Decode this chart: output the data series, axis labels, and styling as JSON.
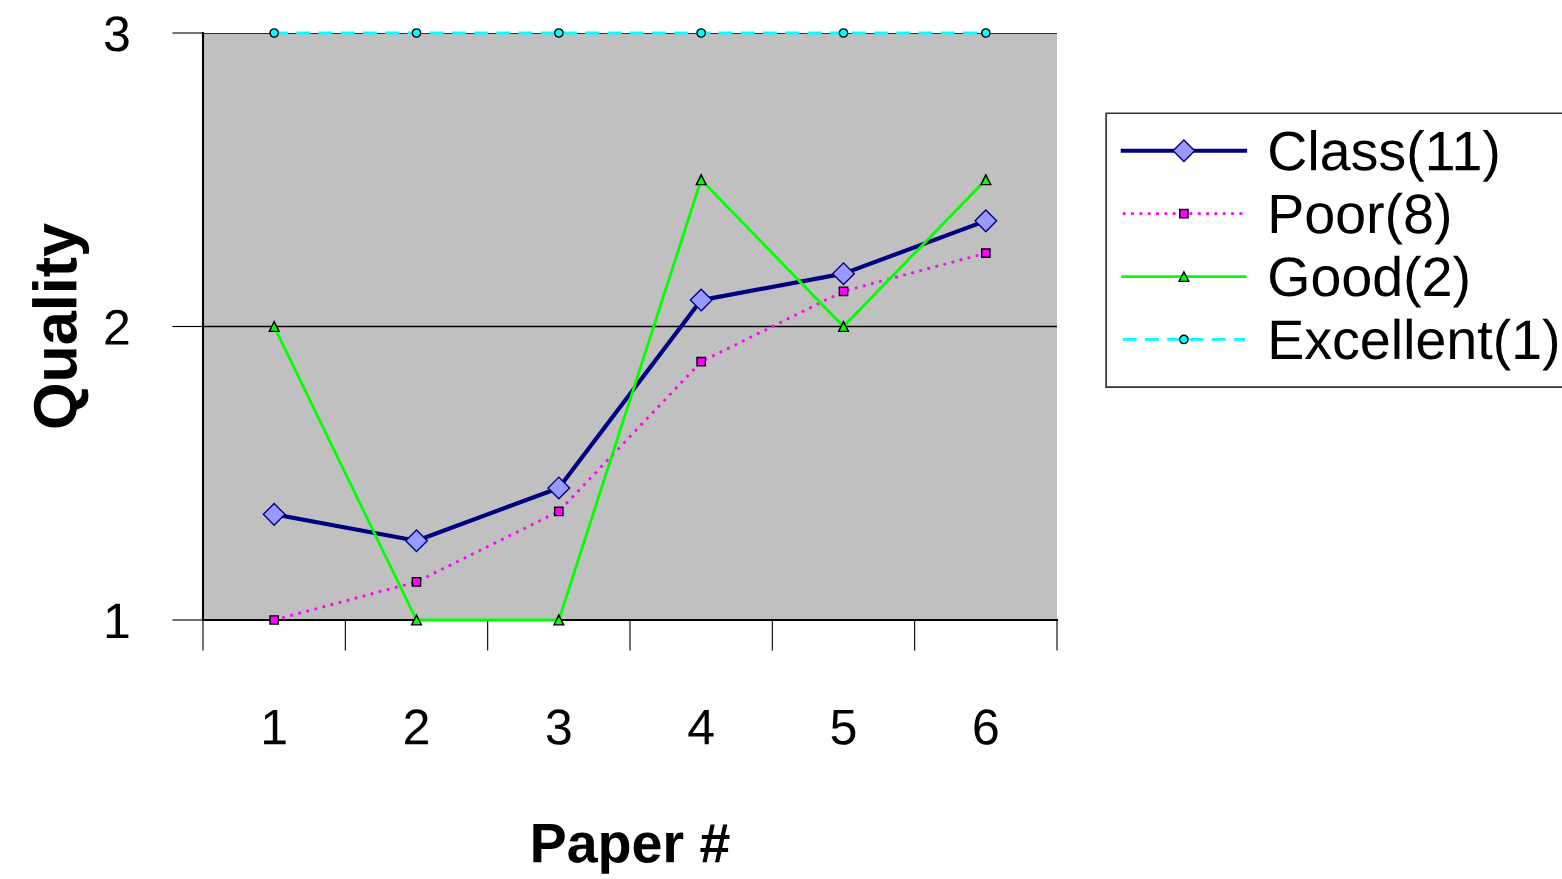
{
  "chart_data": {
    "type": "line",
    "xlabel": "Paper #",
    "ylabel": "Quality",
    "categories": [
      "1",
      "2",
      "3",
      "4",
      "5",
      "6"
    ],
    "ylim": [
      1,
      3
    ],
    "yticks": [
      1,
      2,
      3
    ],
    "grid": "y",
    "legend": "right",
    "series": [
      {
        "name": "Class(11)",
        "color": "#000080",
        "marker": "diamond",
        "line_style": "solid",
        "values": [
          1.36,
          1.27,
          1.45,
          2.09,
          2.18,
          2.36
        ]
      },
      {
        "name": "Poor(8)",
        "color": "#ff00ff",
        "marker": "square",
        "line_style": "dotted",
        "values": [
          1.0,
          1.13,
          1.37,
          1.88,
          2.12,
          2.25
        ]
      },
      {
        "name": "Good(2)",
        "color": "#00ff00",
        "marker": "triangle",
        "line_style": "solid",
        "values": [
          2,
          1,
          1,
          2.5,
          2,
          2.5
        ]
      },
      {
        "name": "Excellent(1)",
        "color": "#00ffff",
        "marker": "circle",
        "line_style": "dashed",
        "values": [
          3,
          3,
          3,
          3,
          3,
          3
        ]
      }
    ]
  }
}
